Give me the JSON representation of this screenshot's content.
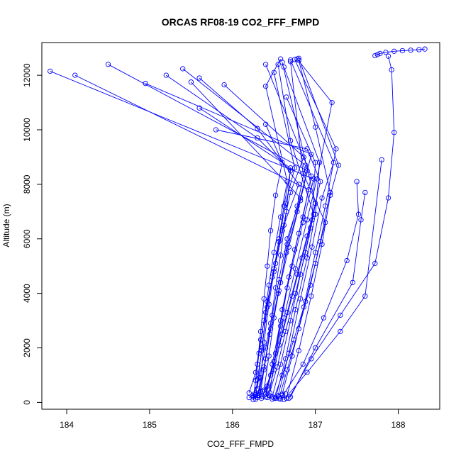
{
  "chart_data": {
    "type": "line",
    "title": "ORCAS RF08-19 CO2_FFF_FMPD",
    "xlabel": "CO2_FFF_FMPD",
    "ylabel": "Altitude (m)",
    "xlim": [
      183.7,
      188.5
    ],
    "ylim": [
      -250,
      13200
    ],
    "x_ticks": [
      184,
      185,
      186,
      187,
      188
    ],
    "y_ticks": [
      0,
      2000,
      4000,
      6000,
      8000,
      10000,
      12000
    ],
    "grid": false,
    "legend": "none",
    "color": "#0000ff",
    "marker": "open-circle",
    "series": [
      {
        "points": [
          [
            186.35,
            150
          ],
          [
            186.42,
            600
          ],
          [
            186.5,
            1500
          ],
          [
            186.58,
            2800
          ],
          [
            186.66,
            4200
          ],
          [
            186.75,
            5600
          ],
          [
            186.85,
            6800
          ],
          [
            186.95,
            8300
          ],
          [
            186.4,
            12400
          ]
        ]
      },
      {
        "points": [
          [
            186.25,
            200
          ],
          [
            186.32,
            900
          ],
          [
            186.4,
            2000
          ],
          [
            186.48,
            3200
          ],
          [
            186.56,
            4500
          ],
          [
            186.66,
            6000
          ],
          [
            186.82,
            7500
          ],
          [
            185.5,
            11750
          ]
        ]
      },
      {
        "points": [
          [
            186.3,
            250
          ],
          [
            186.38,
            1200
          ],
          [
            186.45,
            2500
          ],
          [
            186.55,
            4000
          ],
          [
            186.65,
            5500
          ],
          [
            186.78,
            7000
          ],
          [
            186.9,
            8500
          ],
          [
            184.5,
            12400
          ]
        ]
      },
      {
        "points": [
          [
            186.4,
            300
          ],
          [
            186.48,
            1400
          ],
          [
            186.58,
            3000
          ],
          [
            186.68,
            4600
          ],
          [
            186.8,
            6200
          ],
          [
            186.92,
            7800
          ],
          [
            184.1,
            12000
          ]
        ]
      },
      {
        "points": [
          [
            186.45,
            350
          ],
          [
            186.52,
            1800
          ],
          [
            186.6,
            3400
          ],
          [
            186.72,
            5000
          ],
          [
            186.85,
            6600
          ],
          [
            186.98,
            8200
          ],
          [
            183.8,
            12150
          ]
        ]
      },
      {
        "points": [
          [
            186.34,
            400
          ],
          [
            186.4,
            1600
          ],
          [
            186.46,
            2900
          ],
          [
            186.52,
            4200
          ],
          [
            186.58,
            5400
          ],
          [
            186.65,
            7000
          ],
          [
            186.7,
            8600
          ],
          [
            185.6,
            10800
          ]
        ]
      },
      {
        "points": [
          [
            186.38,
            450
          ],
          [
            186.44,
            1700
          ],
          [
            186.5,
            3100
          ],
          [
            186.58,
            4400
          ],
          [
            186.66,
            5800
          ],
          [
            186.78,
            7200
          ],
          [
            186.88,
            8700
          ],
          [
            185.4,
            12240
          ]
        ]
      },
      {
        "points": [
          [
            186.3,
            500
          ],
          [
            186.35,
            1900
          ],
          [
            186.42,
            3500
          ],
          [
            186.5,
            4900
          ],
          [
            186.6,
            6300
          ],
          [
            186.7,
            7700
          ],
          [
            186.86,
            9000
          ],
          [
            185.9,
            11650
          ]
        ]
      },
      {
        "points": [
          [
            186.2,
            350
          ],
          [
            186.28,
            1100
          ],
          [
            186.34,
            2300
          ],
          [
            186.42,
            3700
          ],
          [
            186.52,
            5100
          ],
          [
            186.62,
            6500
          ],
          [
            186.8,
            8000
          ],
          [
            186.3,
            10050
          ],
          [
            185.6,
            11900
          ]
        ]
      },
      {
        "points": [
          [
            186.48,
            200
          ],
          [
            186.58,
            1400
          ],
          [
            186.7,
            3000
          ],
          [
            186.82,
            4700
          ],
          [
            186.94,
            6400
          ],
          [
            187.06,
            8100
          ],
          [
            186.9,
            9300
          ],
          [
            185.8,
            10000
          ]
        ]
      },
      {
        "points": [
          [
            186.3,
            180
          ],
          [
            186.34,
            900
          ],
          [
            186.38,
            2200
          ],
          [
            186.44,
            3600
          ],
          [
            186.5,
            4800
          ],
          [
            186.56,
            6000
          ],
          [
            186.62,
            7200
          ],
          [
            186.7,
            8500
          ],
          [
            186.3,
            9700
          ],
          [
            185.2,
            12000
          ]
        ]
      },
      {
        "points": [
          [
            186.32,
            250
          ],
          [
            186.38,
            1300
          ],
          [
            186.46,
            2700
          ],
          [
            186.56,
            4100
          ],
          [
            186.68,
            5700
          ],
          [
            186.82,
            7400
          ],
          [
            186.95,
            9100
          ],
          [
            184.95,
            11700
          ]
        ]
      },
      {
        "points": [
          [
            186.52,
            150
          ],
          [
            186.64,
            1600
          ],
          [
            186.76,
            3400
          ],
          [
            186.9,
            5300
          ],
          [
            187.0,
            6900
          ],
          [
            187.05,
            8800
          ],
          [
            186.62,
            12300
          ]
        ]
      },
      {
        "points": [
          [
            186.55,
            250
          ],
          [
            186.68,
            1800
          ],
          [
            186.82,
            3800
          ],
          [
            186.96,
            5700
          ],
          [
            187.08,
            7500
          ],
          [
            187.22,
            8800
          ],
          [
            186.7,
            12560
          ]
        ]
      },
      {
        "points": [
          [
            186.6,
            300
          ],
          [
            186.72,
            1700
          ],
          [
            186.86,
            3500
          ],
          [
            187.0,
            5500
          ],
          [
            187.12,
            7200
          ],
          [
            187.25,
            9300
          ],
          [
            186.75,
            12580
          ]
        ]
      },
      {
        "points": [
          [
            186.4,
            200
          ],
          [
            186.5,
            1500
          ],
          [
            186.62,
            3100
          ],
          [
            186.76,
            4900
          ],
          [
            186.9,
            6700
          ],
          [
            187.02,
            8200
          ],
          [
            187.2,
            11000
          ],
          [
            186.78,
            12600
          ]
        ]
      },
      {
        "points": [
          [
            186.65,
            150
          ],
          [
            186.8,
            1900
          ],
          [
            186.95,
            3900
          ],
          [
            187.08,
            5800
          ],
          [
            187.18,
            7600
          ],
          [
            187.28,
            8700
          ],
          [
            186.8,
            12620
          ]
        ]
      },
      {
        "points": [
          [
            186.25,
            100
          ],
          [
            186.28,
            800
          ],
          [
            186.32,
            1800
          ],
          [
            186.38,
            3000
          ],
          [
            186.44,
            4300
          ],
          [
            186.5,
            5500
          ],
          [
            186.58,
            6800
          ],
          [
            186.66,
            8100
          ],
          [
            186.4,
            11600
          ],
          [
            186.58,
            12600
          ]
        ]
      },
      {
        "points": [
          [
            186.28,
            120
          ],
          [
            186.3,
            850
          ],
          [
            186.36,
            2000
          ],
          [
            186.4,
            3300
          ],
          [
            186.48,
            4600
          ],
          [
            186.56,
            5900
          ],
          [
            186.64,
            7300
          ],
          [
            186.75,
            8600
          ],
          [
            186.5,
            12100
          ]
        ]
      },
      {
        "points": [
          [
            186.42,
            180
          ],
          [
            186.5,
            1200
          ],
          [
            186.6,
            2500
          ],
          [
            186.72,
            3900
          ],
          [
            186.84,
            5300
          ],
          [
            186.96,
            6700
          ],
          [
            187.0,
            8800
          ],
          [
            186.65,
            11200
          ]
        ]
      },
      {
        "points": [
          [
            186.36,
            220
          ],
          [
            186.46,
            1000
          ],
          [
            186.56,
            2100
          ],
          [
            186.66,
            3300
          ],
          [
            186.78,
            4700
          ],
          [
            186.9,
            6100
          ],
          [
            187.0,
            7300
          ],
          [
            186.6,
            12480
          ]
        ]
      },
      {
        "points": [
          [
            186.44,
            260
          ],
          [
            186.54,
            1300
          ],
          [
            186.64,
            2600
          ],
          [
            186.76,
            4000
          ],
          [
            186.88,
            5500
          ],
          [
            186.98,
            6900
          ],
          [
            186.7,
            9600
          ],
          [
            186.55,
            12400
          ]
        ]
      },
      {
        "points": [
          [
            186.5,
            160
          ],
          [
            186.6,
            1000
          ],
          [
            186.74,
            2300
          ],
          [
            186.88,
            3700
          ],
          [
            187.0,
            5100
          ],
          [
            187.12,
            6600
          ],
          [
            186.85,
            8400
          ],
          [
            186.7,
            12500
          ]
        ]
      },
      {
        "points": [
          [
            186.56,
            140
          ],
          [
            186.66,
            1200
          ],
          [
            186.8,
            2700
          ],
          [
            186.94,
            4300
          ],
          [
            187.06,
            5900
          ],
          [
            187.18,
            7700
          ],
          [
            187.0,
            10100
          ],
          [
            186.8,
            12550
          ]
        ]
      },
      {
        "points": [
          [
            186.26,
            300
          ],
          [
            186.3,
            1400
          ],
          [
            186.34,
            2600
          ],
          [
            186.38,
            3800
          ],
          [
            186.42,
            5000
          ],
          [
            186.46,
            6300
          ],
          [
            186.52,
            7600
          ],
          [
            186.6,
            8800
          ],
          [
            186.4,
            10200
          ]
        ]
      },
      {
        "points": [
          [
            186.62,
            100
          ],
          [
            186.9,
            1100
          ],
          [
            187.3,
            2600
          ],
          [
            187.6,
            3900
          ],
          [
            187.8,
            8900
          ]
        ]
      },
      {
        "points": [
          [
            186.68,
            150
          ],
          [
            186.95,
            1600
          ],
          [
            187.3,
            3200
          ],
          [
            187.72,
            5100
          ],
          [
            187.88,
            7500
          ],
          [
            187.95,
            9900
          ],
          [
            187.92,
            12200
          ],
          [
            187.88,
            12700
          ]
        ]
      },
      {
        "points": [
          [
            186.7,
            200
          ],
          [
            187.0,
            2000
          ],
          [
            187.45,
            4400
          ],
          [
            187.55,
            6700
          ],
          [
            187.6,
            7700
          ]
        ]
      },
      {
        "points": [
          [
            186.58,
            120
          ],
          [
            186.85,
            1400
          ],
          [
            187.1,
            3100
          ],
          [
            187.38,
            5200
          ],
          [
            187.52,
            6900
          ],
          [
            187.5,
            8100
          ]
        ]
      },
      {
        "points": [
          [
            187.72,
            12720
          ],
          [
            187.75,
            12760
          ],
          [
            187.78,
            12800
          ],
          [
            187.85,
            12840
          ],
          [
            187.95,
            12880
          ],
          [
            188.05,
            12900
          ],
          [
            188.15,
            12920
          ],
          [
            188.25,
            12940
          ],
          [
            188.32,
            12960
          ]
        ]
      },
      {
        "points": [
          [
            186.2,
            180
          ],
          [
            186.24,
            250
          ],
          [
            186.28,
            300
          ],
          [
            186.32,
            350
          ],
          [
            186.36,
            400
          ]
        ]
      },
      {
        "points": [
          [
            186.48,
            120
          ],
          [
            186.52,
            160
          ],
          [
            186.56,
            200
          ],
          [
            186.6,
            260
          ],
          [
            186.64,
            320
          ]
        ]
      }
    ]
  }
}
